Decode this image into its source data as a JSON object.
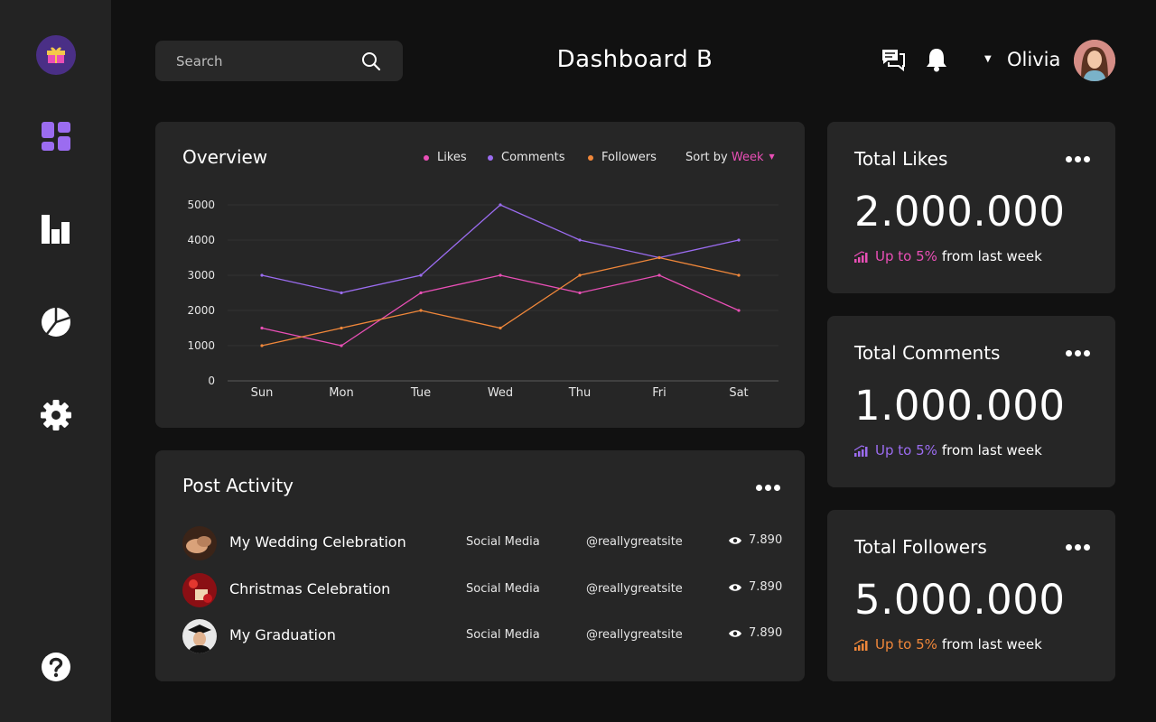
{
  "header": {
    "title": "Dashboard B",
    "search_placeholder": "Search",
    "user_name": "Olivia"
  },
  "icons": {
    "logo": "gift-box-logo",
    "nav": [
      "dashboard-grid-icon",
      "bar-chart-icon",
      "pie-chart-icon",
      "gear-icon",
      "help-icon"
    ],
    "header": [
      "search-icon",
      "chat-icon",
      "bell-icon",
      "caret-down-icon"
    ]
  },
  "colors": {
    "likes": "#e94fb6",
    "comments": "#9b6cf0",
    "followers": "#f0873a",
    "card": "#262626",
    "sidebar": "#232323",
    "background": "#111111"
  },
  "overview": {
    "title": "Overview",
    "legend": [
      "Likes",
      "Comments",
      "Followers"
    ],
    "sort_label": "Sort by",
    "sort_value": "Week"
  },
  "chart_data": {
    "type": "line",
    "title": "Overview",
    "x": [
      "Sun",
      "Mon",
      "Tue",
      "Wed",
      "Thu",
      "Fri",
      "Sat"
    ],
    "y_ticks": [
      0,
      1000,
      2000,
      3000,
      4000,
      5000
    ],
    "ylim": [
      0,
      5000
    ],
    "grid": true,
    "legend_position": "top-right",
    "series": [
      {
        "name": "Likes",
        "color": "#e94fb6",
        "values": [
          1500,
          1000,
          2500,
          3000,
          2500,
          3000,
          2000
        ]
      },
      {
        "name": "Comments",
        "color": "#9b6cf0",
        "values": [
          3000,
          2500,
          3000,
          5000,
          4000,
          3500,
          4000
        ]
      },
      {
        "name": "Followers",
        "color": "#f0873a",
        "values": [
          1000,
          1500,
          2000,
          1500,
          3000,
          3500,
          3000
        ]
      }
    ]
  },
  "activity": {
    "title": "Post Activity",
    "posts": [
      {
        "title": "My Wedding Celebration",
        "category": "Social Media",
        "handle": "@reallygreatsite",
        "views": "7.890"
      },
      {
        "title": "Christmas Celebration",
        "category": "Social Media",
        "handle": "@reallygreatsite",
        "views": "7.890"
      },
      {
        "title": "My Graduation",
        "category": "Social Media",
        "handle": "@reallygreatsite",
        "views": "7.890"
      }
    ]
  },
  "stats": [
    {
      "title": "Total Likes",
      "value": "2.000.000",
      "change": "Up to 5%",
      "suffix": "from last week",
      "color": "#e94fb6"
    },
    {
      "title": "Total Comments",
      "value": "1.000.000",
      "change": "Up to 5%",
      "suffix": "from last week",
      "color": "#9b6cf0"
    },
    {
      "title": "Total Followers",
      "value": "5.000.000",
      "change": "Up to 5%",
      "suffix": "from last week",
      "color": "#f0873a"
    }
  ]
}
